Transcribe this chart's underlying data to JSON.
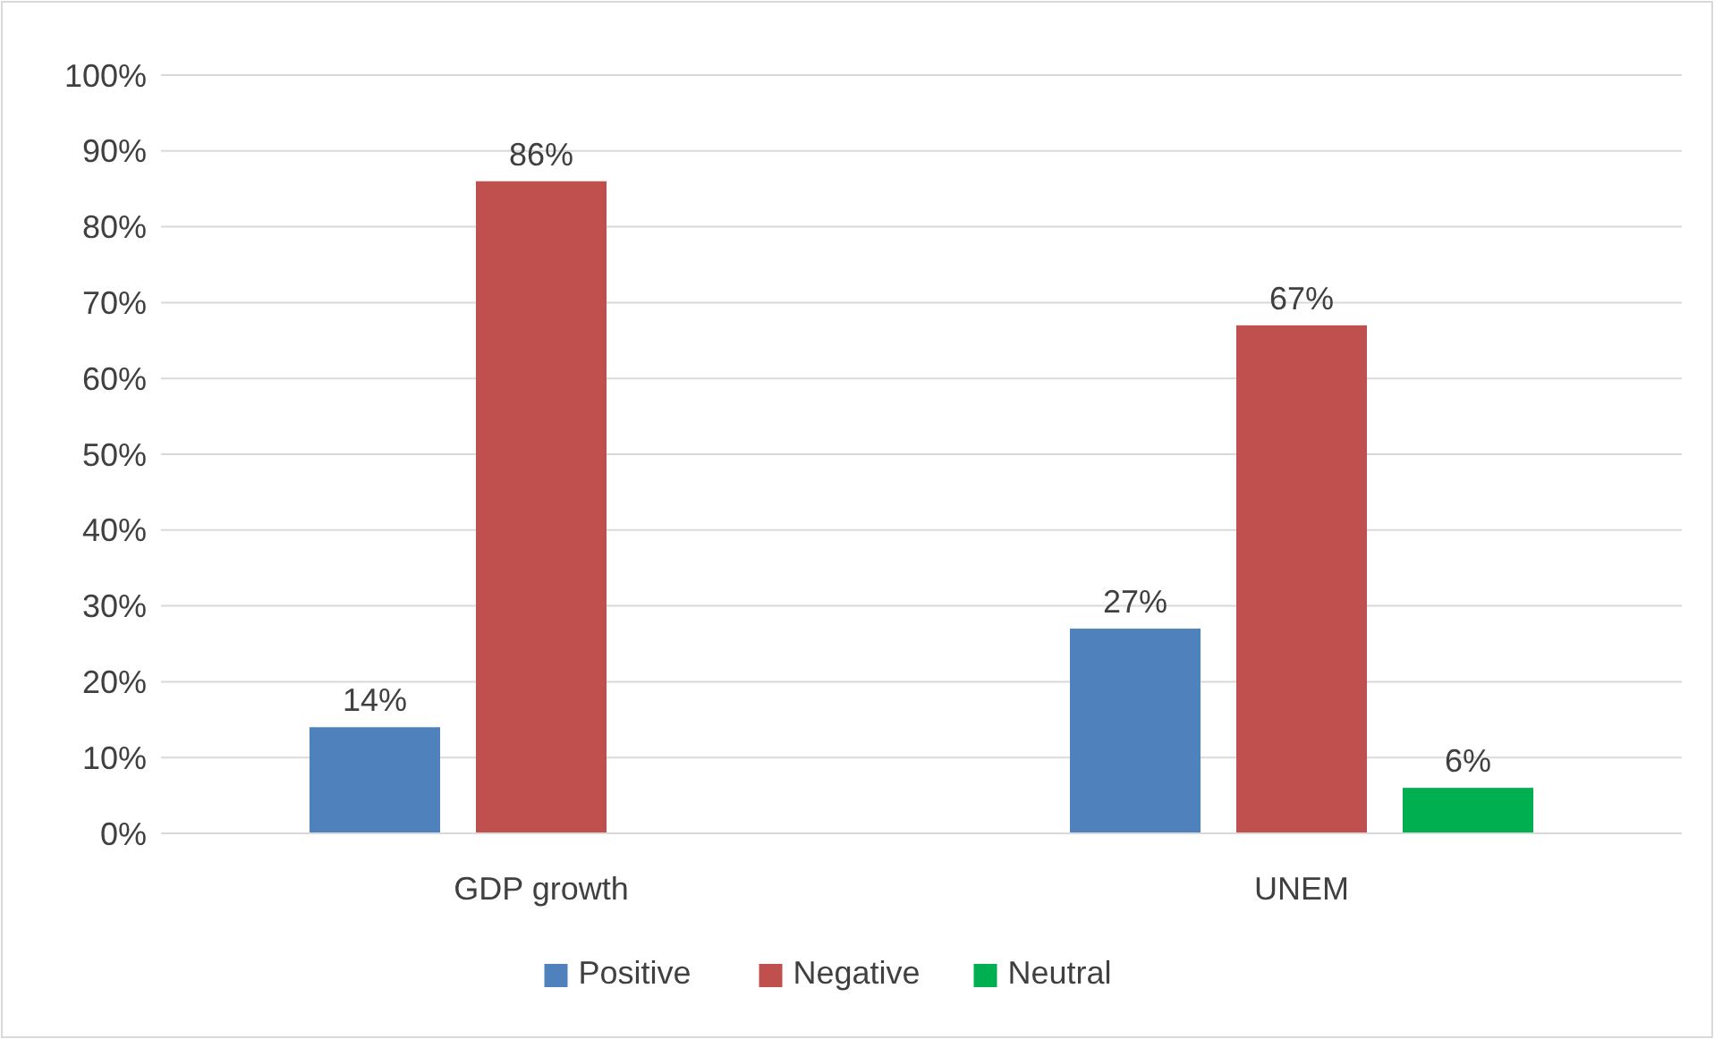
{
  "chart_data": {
    "type": "bar",
    "categories": [
      "GDP growth",
      "UNEM"
    ],
    "series": [
      {
        "name": "Positive",
        "color": "#4f81bd",
        "values": [
          14,
          27
        ],
        "value_labels": [
          "14%",
          "27%"
        ]
      },
      {
        "name": "Negative",
        "color": "#c0504d",
        "values": [
          86,
          67
        ],
        "value_labels": [
          "86%",
          "67%"
        ]
      },
      {
        "name": "Neutral",
        "color": "#00b050",
        "values": [
          null,
          6
        ],
        "value_labels": [
          null,
          "6%"
        ]
      }
    ],
    "ylim": [
      0,
      100
    ],
    "yticks": [
      {
        "value": 0,
        "label": "0%"
      },
      {
        "value": 10,
        "label": "10%"
      },
      {
        "value": 20,
        "label": "20%"
      },
      {
        "value": 30,
        "label": "30%"
      },
      {
        "value": 40,
        "label": "40%"
      },
      {
        "value": 50,
        "label": "50%"
      },
      {
        "value": 60,
        "label": "60%"
      },
      {
        "value": 70,
        "label": "70%"
      },
      {
        "value": 80,
        "label": "80%"
      },
      {
        "value": 90,
        "label": "90%"
      },
      {
        "value": 100,
        "label": "100%"
      }
    ],
    "grid": "y",
    "legend": "bottom"
  }
}
